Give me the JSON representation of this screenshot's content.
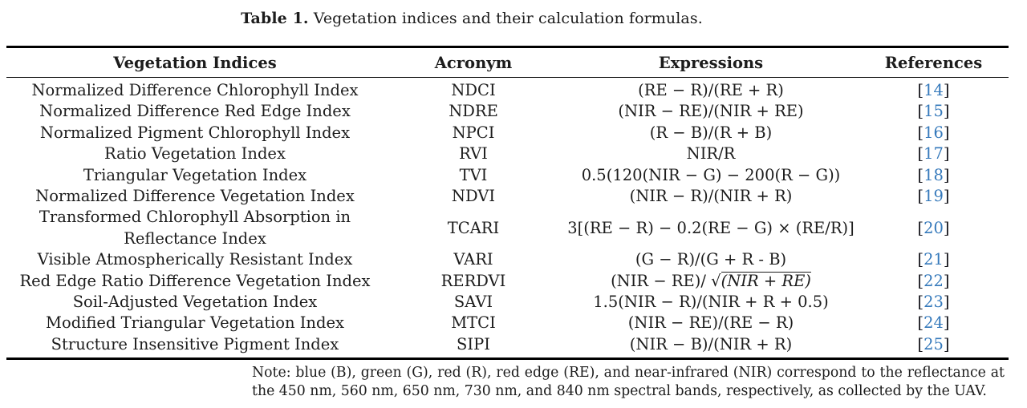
{
  "caption": {
    "label": "Table 1.",
    "text": " Vegetation indices and their calculation formulas."
  },
  "table": {
    "headers": [
      "Vegetation Indices",
      "Acronym",
      "Expressions",
      "References"
    ],
    "rows": [
      {
        "name": "Normalized Difference Chlorophyll Index",
        "acronym": "NDCI",
        "expression": "(RE − R)/(RE + R)",
        "reference": "14"
      },
      {
        "name": "Normalized Difference Red Edge Index",
        "acronym": "NDRE",
        "expression": "(NIR − RE)/(NIR + RE)",
        "reference": "15"
      },
      {
        "name": "Normalized Pigment Chlorophyll Index",
        "acronym": "NPCI",
        "expression": "(R − B)/(R + B)",
        "reference": "16"
      },
      {
        "name": "Ratio Vegetation Index",
        "acronym": "RVI",
        "expression": "NIR/R",
        "reference": "17"
      },
      {
        "name": "Triangular Vegetation Index",
        "acronym": "TVI",
        "expression": "0.5(120(NIR − G) − 200(R − G))",
        "reference": "18"
      },
      {
        "name": "Normalized Difference Vegetation Index",
        "acronym": "NDVI",
        "expression": "(NIR − R)/(NIR + R)",
        "reference": "19"
      },
      {
        "name": "Transformed Chlorophyll Absorption in\nReflectance Index",
        "acronym": "TCARI",
        "expression": "3[(RE − R) − 0.2(RE − G) × (RE/R)]",
        "reference": "20"
      },
      {
        "name": "Visible Atmospherically Resistant Index",
        "acronym": "VARI",
        "expression": "(G − R)/(G + R - B)",
        "reference": "21"
      },
      {
        "name": "Red Edge Ratio Difference Vegetation Index",
        "acronym": "RERDVI",
        "expression_sqrt": {
          "prefix": "(NIR − RE)/ ",
          "radical": "√",
          "radicand": "(NIR + RE)"
        },
        "reference": "22"
      },
      {
        "name": "Soil-Adjusted Vegetation Index",
        "acronym": "SAVI",
        "expression": "1.5(NIR − R)/(NIR + R + 0.5)",
        "reference": "23"
      },
      {
        "name": "Modified Triangular Vegetation Index",
        "acronym": "MTCI",
        "expression": "(NIR − RE)/(RE − R)",
        "reference": "24"
      },
      {
        "name": "Structure Insensitive Pigment Index",
        "acronym": "SIPI",
        "expression": "(NIR − B)/(NIR + R)",
        "reference": "25"
      }
    ],
    "reference_open_bracket": "[",
    "reference_close_bracket": "]"
  },
  "note": {
    "text": "Note: blue (B), green (G), red (R), red edge (RE), and near-infrared (NIR) correspond to the reflectance at the 450 nm, 560 nm, 650 nm, 730 nm, and 840 nm spectral bands, respectively, as collected by the UAV."
  },
  "colors": {
    "reference_link": "#3579bb",
    "rule": "#000000",
    "text": "#1c1c1c",
    "background": "#ffffff"
  }
}
